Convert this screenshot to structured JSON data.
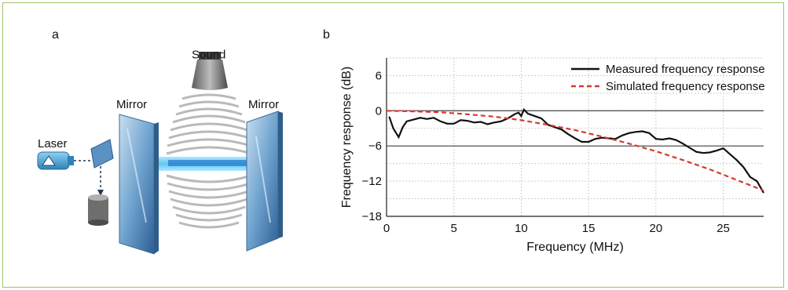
{
  "figure": {
    "panel_a": {
      "label": "a",
      "labels": {
        "laser": "Laser",
        "mirror_left": "Mirror",
        "mirror_right": "Mirror",
        "sound": "Sound"
      }
    },
    "panel_b": {
      "label": "b"
    }
  },
  "chart_data": {
    "type": "line",
    "title": "",
    "xlabel": "Frequency (MHz)",
    "ylabel": "Frequency response (dB)",
    "xlim": [
      0,
      28
    ],
    "ylim": [
      -18,
      9
    ],
    "xticks": [
      0,
      5,
      10,
      15,
      20,
      25
    ],
    "xtick_labels": [
      "0",
      "5",
      "10",
      "15",
      "20",
      "25"
    ],
    "yticks": [
      -18,
      -12,
      -6,
      0,
      6
    ],
    "ytick_labels": [
      "−18",
      "−12",
      "−6",
      "0",
      "6"
    ],
    "grid": true,
    "legend_position": "top-right",
    "reference_lines": [
      0,
      -6
    ],
    "series": [
      {
        "name": "Measured frequency response",
        "color": "#111111",
        "style": "solid",
        "x": [
          0.2,
          0.5,
          0.9,
          1.2,
          1.5,
          2.0,
          2.5,
          3.0,
          3.5,
          4.0,
          4.5,
          5.0,
          5.5,
          6.0,
          6.5,
          7.0,
          7.5,
          8.0,
          8.5,
          9.0,
          9.5,
          9.8,
          10.0,
          10.2,
          10.5,
          11.0,
          11.5,
          12.0,
          12.5,
          13.0,
          13.5,
          14.0,
          14.5,
          15.0,
          15.5,
          16.0,
          16.5,
          17.0,
          17.5,
          18.0,
          18.5,
          19.0,
          19.5,
          20.0,
          20.5,
          21.0,
          21.5,
          22.0,
          22.5,
          23.0,
          23.5,
          24.0,
          24.5,
          25.0,
          25.5,
          26.0,
          26.5,
          27.0,
          27.5,
          28.0
        ],
        "y": [
          -1.0,
          -3.0,
          -4.5,
          -2.8,
          -1.8,
          -1.5,
          -1.2,
          -1.4,
          -1.2,
          -1.8,
          -2.2,
          -2.2,
          -1.6,
          -1.7,
          -2.0,
          -1.9,
          -2.3,
          -2.0,
          -1.8,
          -1.3,
          -0.6,
          -0.3,
          -0.9,
          0.2,
          -0.5,
          -0.9,
          -1.3,
          -2.4,
          -2.8,
          -3.2,
          -4.0,
          -4.7,
          -5.3,
          -5.3,
          -4.8,
          -4.6,
          -4.7,
          -4.8,
          -4.2,
          -3.8,
          -3.6,
          -3.5,
          -3.8,
          -4.8,
          -4.9,
          -4.7,
          -5.0,
          -5.6,
          -6.3,
          -7.0,
          -7.2,
          -7.1,
          -6.8,
          -6.4,
          -7.4,
          -8.4,
          -9.6,
          -11.3,
          -12.0,
          -14.0
        ]
      },
      {
        "name": "Simulated frequency response",
        "color": "#d63a2f",
        "style": "dashed",
        "x": [
          0,
          2,
          4,
          6,
          8,
          10,
          12,
          14,
          16,
          18,
          20,
          22,
          24,
          26,
          28
        ],
        "y": [
          0.0,
          -0.1,
          -0.25,
          -0.6,
          -1.0,
          -1.6,
          -2.4,
          -3.3,
          -4.4,
          -5.6,
          -6.9,
          -8.4,
          -10.0,
          -11.8,
          -13.6
        ]
      }
    ]
  }
}
